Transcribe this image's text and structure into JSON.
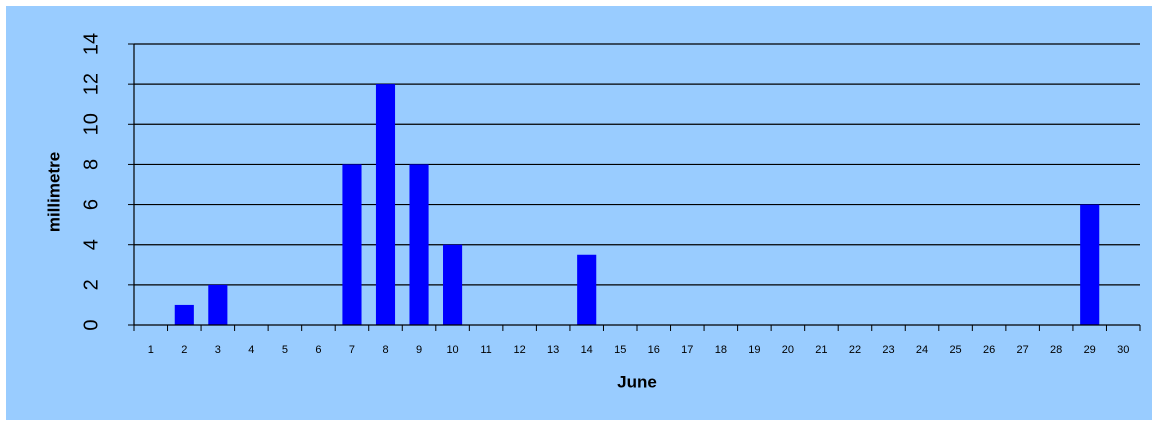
{
  "chart_data": {
    "type": "bar",
    "xlabel": "June",
    "ylabel": "millimetre",
    "ylim": [
      0,
      14
    ],
    "y_ticks": [
      0,
      2,
      4,
      6,
      8,
      10,
      12,
      14
    ],
    "grid": true,
    "legend": "none",
    "categories": [
      "1",
      "2",
      "3",
      "4",
      "5",
      "6",
      "7",
      "8",
      "9",
      "10",
      "11",
      "12",
      "13",
      "14",
      "15",
      "16",
      "17",
      "18",
      "19",
      "20",
      "21",
      "22",
      "23",
      "24",
      "25",
      "26",
      "27",
      "28",
      "29",
      "30"
    ],
    "values": [
      0,
      1,
      2,
      0,
      0,
      0,
      8,
      12,
      8,
      4,
      0,
      0,
      0,
      3.5,
      0,
      0,
      0,
      0,
      0,
      0,
      0,
      0,
      0,
      0,
      0,
      0,
      0,
      0,
      6,
      0
    ],
    "colors": {
      "background": "#99ccff",
      "bar": "#0000ff",
      "gridline": "#000000"
    }
  }
}
